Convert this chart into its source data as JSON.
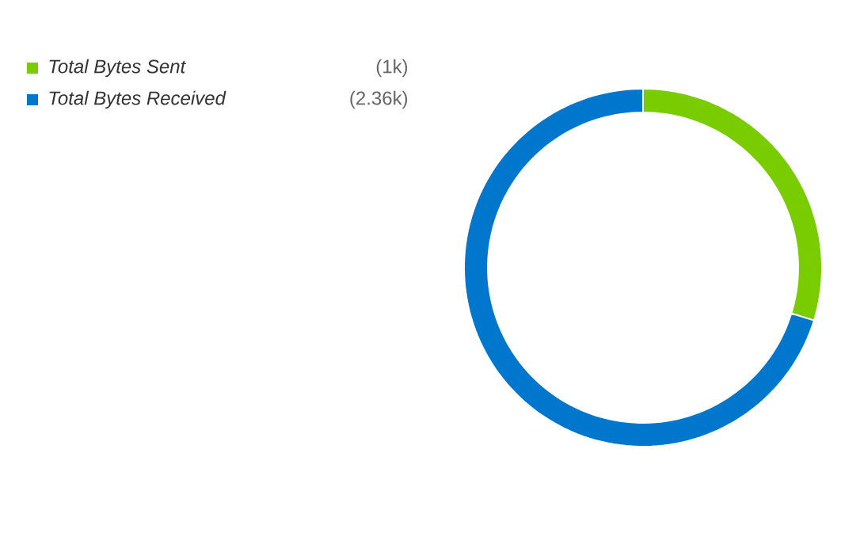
{
  "chart_data": {
    "type": "donut",
    "categories": [
      "Total Bytes Sent",
      "Total Bytes Received"
    ],
    "values": [
      1000,
      2360
    ],
    "value_labels": [
      "(1k)",
      "(2.36k)"
    ],
    "colors": [
      "#78cc00",
      "#0077cc"
    ],
    "legend": "top left"
  }
}
